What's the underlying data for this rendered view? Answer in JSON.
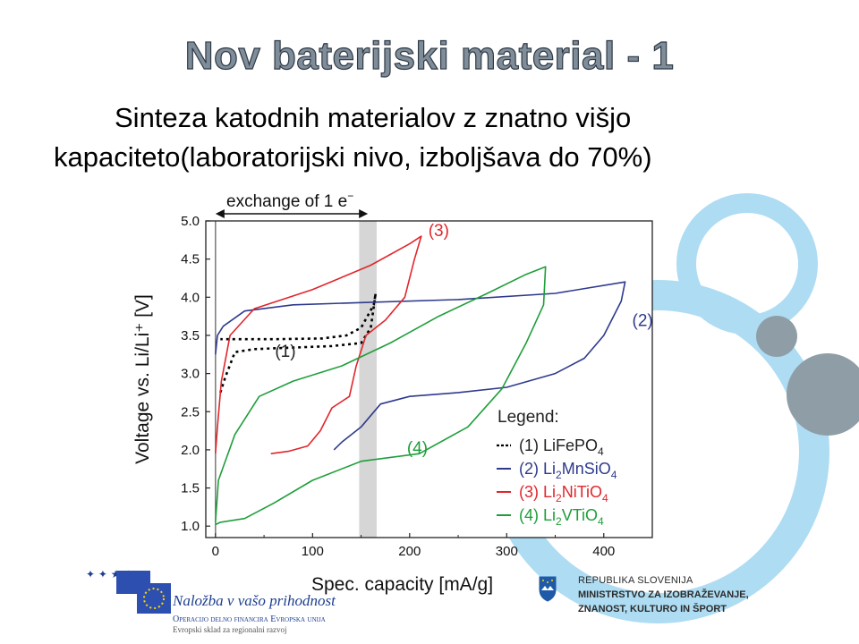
{
  "slide": {
    "title": "Nov baterijski material - 1",
    "subtitle_line1": "Sinteza katodnih materialov z znatno višjo",
    "subtitle_line2": "kapaciteto(laboratorijski nivo, izboljšava do 70%)"
  },
  "colors": {
    "lifepo4": "#000000",
    "li2mnsio4": "#2e3a8c",
    "li2nitio4": "#e0262c",
    "li2vtio4": "#1e9e3a",
    "deco_circle": "#aedcf3",
    "deco_grey": "#8f9ea6",
    "title_fill": "#7f8c99"
  },
  "chart_data": {
    "type": "line",
    "xlabel": "Spec. capacity [mA/g]",
    "ylabel": "Voltage vs. Li/Li⁺ [V]",
    "xlim": [
      -10,
      450
    ],
    "ylim": [
      0.85,
      5.0
    ],
    "xticks": [
      0,
      100,
      200,
      300,
      400
    ],
    "yticks": [
      1.0,
      1.5,
      2.0,
      2.5,
      3.0,
      3.5,
      4.0,
      4.5,
      5.0
    ],
    "grid": false,
    "band": {
      "x0": 148,
      "x1": 166
    },
    "exchange_arrow": {
      "x0": 0,
      "x1": 157,
      "label": "exchange of 1 e",
      "label_sup": "−"
    },
    "legend_title": "Legend:",
    "legend": [
      {
        "id": "s1",
        "symbol": "---",
        "label": "(1) LiFePO",
        "sub": "4"
      },
      {
        "id": "s2",
        "symbol": "—",
        "label": "(2) Li",
        "sub": "2",
        "tail": "MnSiO",
        "sub2": "4"
      },
      {
        "id": "s3",
        "symbol": "—",
        "label": "(3) Li",
        "sub": "2",
        "tail": "NiTiO",
        "sub2": "4"
      },
      {
        "id": "s4",
        "symbol": "—",
        "label": "(4) Li",
        "sub": "2",
        "tail": "VTiO",
        "sub2": "4"
      }
    ],
    "annotations": [
      {
        "id": "s1",
        "text": "(1)",
        "x": 72,
        "y": 3.22
      },
      {
        "id": "s2",
        "text": "(2)",
        "x": 440,
        "y": 3.62
      },
      {
        "id": "s3",
        "text": "(3)",
        "x": 230,
        "y": 4.8
      },
      {
        "id": "s4",
        "text": "(4)",
        "x": 208,
        "y": 1.95
      }
    ],
    "series": [
      {
        "id": "s1",
        "dashed": true,
        "points": [
          [
            5,
            2.75
          ],
          [
            10,
            2.95
          ],
          [
            20,
            3.28
          ],
          [
            40,
            3.32
          ],
          [
            80,
            3.34
          ],
          [
            120,
            3.36
          ],
          [
            150,
            3.4
          ],
          [
            160,
            3.6
          ],
          [
            165,
            4.05
          ],
          [
            163,
            3.9
          ],
          [
            150,
            3.6
          ],
          [
            135,
            3.5
          ],
          [
            110,
            3.46
          ],
          [
            60,
            3.45
          ],
          [
            20,
            3.45
          ],
          [
            5,
            3.45
          ]
        ]
      },
      {
        "id": "s2",
        "points": [
          [
            0,
            3.25
          ],
          [
            2,
            3.5
          ],
          [
            8,
            3.62
          ],
          [
            30,
            3.82
          ],
          [
            80,
            3.9
          ],
          [
            150,
            3.93
          ],
          [
            250,
            3.97
          ],
          [
            350,
            4.05
          ],
          [
            422,
            4.2
          ],
          [
            418,
            3.95
          ],
          [
            400,
            3.5
          ],
          [
            380,
            3.2
          ],
          [
            350,
            3.0
          ],
          [
            300,
            2.82
          ],
          [
            250,
            2.75
          ],
          [
            200,
            2.7
          ],
          [
            170,
            2.6
          ],
          [
            150,
            2.3
          ],
          [
            130,
            2.1
          ],
          [
            122,
            2.0
          ]
        ]
      },
      {
        "id": "s3",
        "points": [
          [
            0,
            1.95
          ],
          [
            2,
            2.3
          ],
          [
            6,
            2.9
          ],
          [
            15,
            3.5
          ],
          [
            40,
            3.85
          ],
          [
            100,
            4.1
          ],
          [
            160,
            4.42
          ],
          [
            200,
            4.7
          ],
          [
            212,
            4.8
          ],
          [
            205,
            4.5
          ],
          [
            195,
            4.0
          ],
          [
            175,
            3.7
          ],
          [
            155,
            3.5
          ],
          [
            145,
            3.1
          ],
          [
            138,
            2.7
          ],
          [
            120,
            2.55
          ],
          [
            108,
            2.25
          ],
          [
            95,
            2.05
          ],
          [
            75,
            1.98
          ],
          [
            57,
            1.95
          ]
        ]
      },
      {
        "id": "s4",
        "points": [
          [
            0,
            1.05
          ],
          [
            3,
            1.6
          ],
          [
            20,
            2.2
          ],
          [
            45,
            2.7
          ],
          [
            80,
            2.9
          ],
          [
            130,
            3.1
          ],
          [
            180,
            3.4
          ],
          [
            230,
            3.75
          ],
          [
            280,
            4.05
          ],
          [
            320,
            4.3
          ],
          [
            340,
            4.4
          ],
          [
            338,
            3.9
          ],
          [
            320,
            3.4
          ],
          [
            295,
            2.8
          ],
          [
            260,
            2.3
          ],
          [
            210,
            1.95
          ],
          [
            150,
            1.85
          ],
          [
            100,
            1.6
          ],
          [
            60,
            1.3
          ],
          [
            30,
            1.1
          ],
          [
            5,
            1.05
          ],
          [
            0,
            1.02
          ]
        ]
      }
    ]
  },
  "footer": {
    "eu_slogan": "Naložba v vašo prihodnost",
    "eu_line2": "Operacijo delno financira Evropska unija",
    "eu_line3": "Evropski sklad za regionalni razvoj",
    "ministry_line1": "REPUBLIKA SLOVENIJA",
    "ministry_line2": "MINISTRSTVO ZA IZOBRAŽEVANJE,",
    "ministry_line3": "ZNANOST, KULTURO IN ŠPORT"
  }
}
